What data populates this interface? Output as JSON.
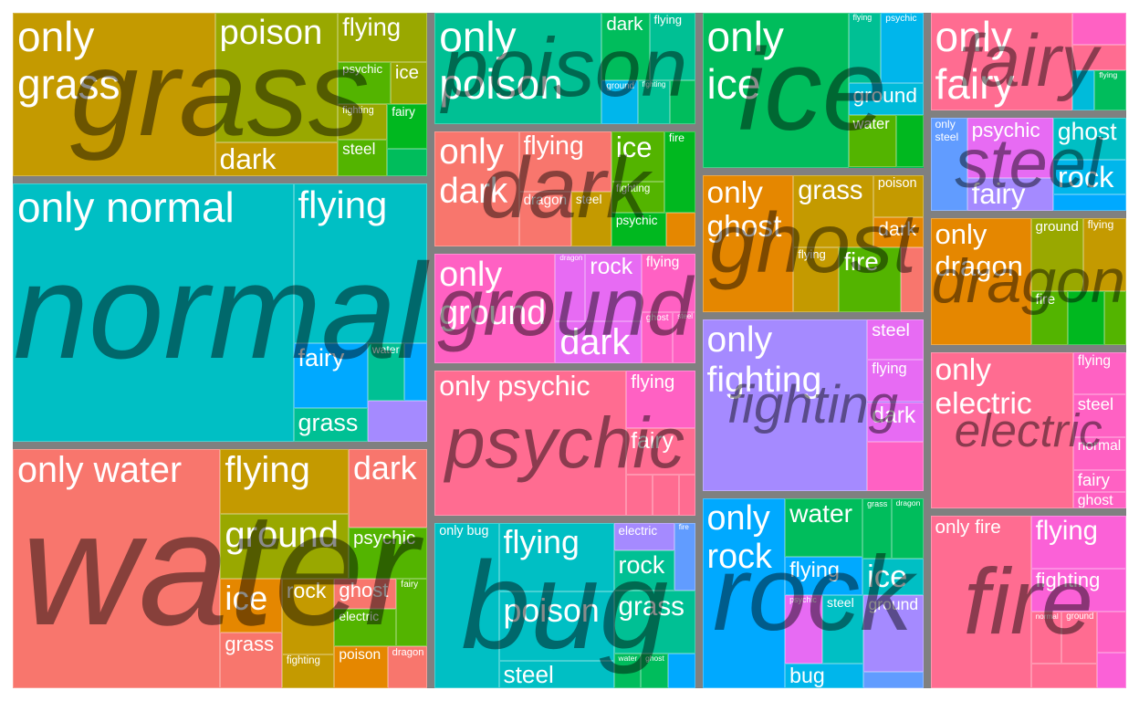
{
  "chart_data": {
    "type": "treemap",
    "groups": [
      {
        "name": "grass",
        "color": "#C49A00",
        "children": [
          {
            "label": "only\ngrass",
            "value": 29.8
          },
          {
            "label": "poison",
            "value": 14.4,
            "color": "#99A800"
          },
          {
            "label": "dark",
            "value": 3.7
          },
          {
            "label": "flying",
            "value": 4.0,
            "color": "#99A800"
          },
          {
            "label": "psychic",
            "value": 2.0,
            "color": "#53B400"
          },
          {
            "label": "ice",
            "value": 1.4,
            "color": "#99A800"
          },
          {
            "label": "fighting",
            "value": 1.6,
            "color": "#99A800"
          },
          {
            "label": "steel",
            "value": 1.6,
            "color": "#53B400"
          },
          {
            "label": "fairy",
            "value": 1.6,
            "color": "#00B81F"
          },
          {
            "label": "",
            "value": 1.0,
            "color": "#00BD5C"
          }
        ]
      },
      {
        "name": "poison",
        "color": "#00C094",
        "children": [
          {
            "label": "only\npoison",
            "value": 27.6
          },
          {
            "label": "dark",
            "value": 4.8,
            "color": "#00BD5C"
          },
          {
            "label": "flying",
            "value": 4.6,
            "color": "#00C094"
          },
          {
            "label": "ground",
            "value": 2.3,
            "color": "#00B6EB"
          },
          {
            "label": "fighting",
            "value": 2.1,
            "color": "#00C094"
          },
          {
            "label": "",
            "value": 1.6,
            "color": "#00BD5C"
          }
        ]
      },
      {
        "name": "ice",
        "color": "#00BD5C",
        "children": [
          {
            "label": "only\nice",
            "value": 23.6
          },
          {
            "label": "flying",
            "value": 2.4,
            "color": "#00C094"
          },
          {
            "label": "psychic",
            "value": 3.1,
            "color": "#00B6EB"
          },
          {
            "label": "ground",
            "value": 2.5,
            "color": "#00BBDA"
          },
          {
            "label": "water",
            "value": 2.6,
            "color": "#53B400"
          },
          {
            "label": "",
            "value": 1.5,
            "color": "#00B81F"
          }
        ]
      },
      {
        "name": "fairy",
        "color": "#FB61D7",
        "children": [
          {
            "label": "only\nfairy",
            "value": 17.3,
            "color": "#FF6C91"
          },
          {
            "label": "",
            "value": 2.1,
            "color": "#FF61C3"
          },
          {
            "label": "",
            "value": 1.7,
            "color": "#FF6C91"
          },
          {
            "label": "",
            "value": 1.1,
            "color": "#00BBDA"
          },
          {
            "label": "flying",
            "value": 1.6,
            "color": "#00BD5C"
          }
        ]
      },
      {
        "name": "dark",
        "color": "#E58700",
        "children": [
          {
            "label": "only\ndark",
            "value": 14.5,
            "color": "#F8766D"
          },
          {
            "label": "flying",
            "value": 8.3,
            "color": "#F8766D"
          },
          {
            "label": "dragon",
            "value": 4.3,
            "color": "#F8766D"
          },
          {
            "label": "steel",
            "value": 3.3,
            "color": "#C49A00"
          },
          {
            "label": "ice",
            "value": 4.0,
            "color": "#53B400"
          },
          {
            "label": "fighting",
            "value": 2.4,
            "color": "#53B400"
          },
          {
            "label": "fire",
            "value": 3.7,
            "color": "#00B81F"
          },
          {
            "label": "psychic",
            "value": 2.8,
            "color": "#00B81F"
          },
          {
            "label": "",
            "value": 1.5,
            "color": "#E58700"
          }
        ]
      },
      {
        "name": "ghost",
        "color": "#E58700",
        "children": [
          {
            "label": "only\nghost",
            "value": 13.1
          },
          {
            "label": "grass",
            "value": 6.1,
            "color": "#C49A00"
          },
          {
            "label": "poison",
            "value": 2.2,
            "color": "#C49A00"
          },
          {
            "label": "dark",
            "value": 1.6,
            "color": "#E58700"
          },
          {
            "label": "flying",
            "value": 3.1,
            "color": "#C49A00"
          },
          {
            "label": "fire",
            "value": 4.2,
            "color": "#53B400"
          },
          {
            "label": "",
            "value": 1.5,
            "color": "#F8766D"
          }
        ]
      },
      {
        "name": "steel",
        "color": "#619CFF",
        "children": [
          {
            "label": "only\nsteel",
            "value": 4.2
          },
          {
            "label": "psychic",
            "value": 6.4,
            "color": "#E76BF3"
          },
          {
            "label": "fairy",
            "value": 3.5,
            "color": "#A58AFF"
          },
          {
            "label": "ghost",
            "value": 3.8,
            "color": "#00BFC4"
          },
          {
            "label": "rock",
            "value": 3.1,
            "color": "#00B6EB"
          },
          {
            "label": "",
            "value": 1.5,
            "color": "#00A9FF"
          }
        ]
      },
      {
        "name": "ground",
        "color": "#FF61C3",
        "children": [
          {
            "label": "only\nground",
            "value": 19.6,
            "color": "#FF61C3"
          },
          {
            "label": "dragon",
            "value": 3.0,
            "color": "#E76BF3"
          },
          {
            "label": "rock",
            "value": 5.6,
            "color": "#E76BF3"
          },
          {
            "label": "dark",
            "value": 5.4,
            "color": "#E76BF3"
          },
          {
            "label": "flying",
            "value": 4.6,
            "color": "#FF61C3"
          },
          {
            "label": "ghost",
            "value": 2.4,
            "color": "#FF61C3"
          },
          {
            "label": "steel",
            "value": 1.7,
            "color": "#FF61C3"
          }
        ]
      },
      {
        "name": "fighting",
        "color": "#A58AFF",
        "children": [
          {
            "label": "only\nfighting",
            "value": 29.5
          },
          {
            "label": "steel",
            "value": 2.3,
            "color": "#E76BF3"
          },
          {
            "label": "flying",
            "value": 2.5,
            "color": "#E76BF3"
          },
          {
            "label": "dark",
            "value": 2.3,
            "color": "#E76BF3"
          },
          {
            "label": "",
            "value": 2.9,
            "color": "#FF61C3"
          }
        ]
      },
      {
        "name": "dragon",
        "color": "#F8766D",
        "children": [
          {
            "label": "only\ndragon",
            "value": 15.8,
            "color": "#E58700"
          },
          {
            "label": "ground",
            "value": 4.7,
            "color": "#99A800"
          },
          {
            "label": "flying",
            "value": 3.9,
            "color": "#C49A00"
          },
          {
            "label": "fire",
            "value": 2.5,
            "color": "#53B400"
          },
          {
            "label": "",
            "value": 2.4,
            "color": "#00B81F"
          },
          {
            "label": "",
            "value": 1.5,
            "color": "#53B400"
          }
        ]
      },
      {
        "name": "psychic",
        "color": "#FF6C91",
        "children": [
          {
            "label": "only psychic",
            "value": 41.3
          },
          {
            "label": "flying",
            "value": 5.9,
            "color": "#FF61C3"
          },
          {
            "label": "fairy",
            "value": 4.7,
            "color": "#FF6C91"
          },
          {
            "label": "",
            "value": 1.6,
            "color": "#FF6C91"
          },
          {
            "label": "",
            "value": 1.6,
            "color": "#FF6C91"
          },
          {
            "label": "",
            "value": 1.0,
            "color": "#FF6C91"
          }
        ]
      },
      {
        "name": "rock",
        "color": "#00A9FF",
        "children": [
          {
            "label": "only\nrock",
            "value": 16.4
          },
          {
            "label": "water",
            "value": 4.7,
            "color": "#00BD5C"
          },
          {
            "label": "flying",
            "value": 3.1
          },
          {
            "label": "grass",
            "value": 1.8,
            "color": "#00BD5C"
          },
          {
            "label": "dragon",
            "value": 2.0,
            "color": "#00BD5C"
          },
          {
            "label": "ice",
            "value": 2.3,
            "color": "#00BFC4"
          },
          {
            "label": "psychic",
            "value": 2.7,
            "color": "#E76BF3"
          },
          {
            "label": "steel",
            "value": 3.0,
            "color": "#00BFC4"
          },
          {
            "label": "bug",
            "value": 2.0,
            "color": "#00B6EB"
          },
          {
            "label": "ground",
            "value": 4.8,
            "color": "#A58AFF"
          },
          {
            "label": "",
            "value": 1.0,
            "color": "#619CFF"
          }
        ]
      },
      {
        "name": "electric",
        "color": "#FF6C91",
        "children": [
          {
            "label": "only\nelectric",
            "value": 27.6
          },
          {
            "label": "flying",
            "value": 2.8,
            "color": "#FF61C3"
          },
          {
            "label": "steel",
            "value": 2.8,
            "color": "#FF61C3"
          },
          {
            "label": "normal",
            "value": 2.2,
            "color": "#FF61C3"
          },
          {
            "label": "fairy",
            "value": 1.4,
            "color": "#FF61C3"
          },
          {
            "label": "ghost",
            "value": 1.1,
            "color": "#FF61C3"
          }
        ]
      },
      {
        "name": "normal",
        "color": "#00BFC4",
        "children": [
          {
            "label": "only normal",
            "value": 65.6
          },
          {
            "label": "flying",
            "value": 19.4,
            "color": "#00BFC4"
          },
          {
            "label": "fairy",
            "value": 4.3,
            "color": "#00A9FF"
          },
          {
            "label": "grass",
            "value": 2.3,
            "color": "#00C094"
          },
          {
            "label": "water",
            "value": 1.9,
            "color": "#00C094"
          },
          {
            "label": "",
            "value": 1.2,
            "color": "#00A9FF"
          },
          {
            "label": "",
            "value": 2.2,
            "color": "#A58AFF"
          }
        ]
      },
      {
        "name": "water",
        "color": "#F8766D",
        "children": [
          {
            "label": "only water",
            "value": 44.8
          },
          {
            "label": "flying",
            "value": 7.5,
            "color": "#C49A00"
          },
          {
            "label": "ground",
            "value": 7.5,
            "color": "#99A800"
          },
          {
            "label": "dark",
            "value": 5.6,
            "color": "#F8766D"
          },
          {
            "label": "psychic",
            "value": 3.6,
            "color": "#53B400"
          },
          {
            "label": "ice",
            "value": 3.0,
            "color": "#E58700"
          },
          {
            "label": "grass",
            "value": 3.1,
            "color": "#F8766D"
          },
          {
            "label": "rock",
            "value": 3.6,
            "color": "#C49A00"
          },
          {
            "label": "fighting",
            "value": 1.6,
            "color": "#C49A00"
          },
          {
            "label": "ghost",
            "value": 1.7,
            "color": "#F8766D"
          },
          {
            "label": "electric",
            "value": 2.1,
            "color": "#53B400"
          },
          {
            "label": "fairy",
            "value": 1.9,
            "color": "#53B400"
          },
          {
            "label": "poison",
            "value": 2.0,
            "color": "#E58700"
          },
          {
            "label": "dragon",
            "value": 1.5,
            "color": "#F8766D"
          }
        ]
      },
      {
        "name": "bug",
        "color": "#00BFC4",
        "children": [
          {
            "label": "only bug",
            "value": 15.8
          },
          {
            "label": "flying",
            "value": 11.7
          },
          {
            "label": "poison",
            "value": 11.9,
            "color": "#00BFC4"
          },
          {
            "label": "steel",
            "value": 4.7,
            "color": "#00BFC4"
          },
          {
            "label": "electric",
            "value": 2.5,
            "color": "#A58AFF"
          },
          {
            "label": "rock",
            "value": 3.6,
            "color": "#00C094"
          },
          {
            "label": "fire",
            "value": 2.1,
            "color": "#619CFF"
          },
          {
            "label": "grass",
            "value": 7.6,
            "color": "#00C094"
          },
          {
            "label": "water",
            "value": 1.4,
            "color": "#00BD5C"
          },
          {
            "label": "ghost",
            "value": 1.4,
            "color": "#00BD5C"
          },
          {
            "label": "",
            "value": 1.4,
            "color": "#00A9FF"
          }
        ]
      },
      {
        "name": "fire",
        "color": "#FF6C91",
        "children": [
          {
            "label": "only fire",
            "value": 21.5
          },
          {
            "label": "flying",
            "value": 6.3,
            "color": "#FB61D7"
          },
          {
            "label": "fighting",
            "value": 5.0,
            "color": "#FB61D7"
          },
          {
            "label": "normal",
            "value": 2.0,
            "color": "#FF6C91"
          },
          {
            "label": "ground",
            "value": 2.3,
            "color": "#FF6C91"
          },
          {
            "label": "",
            "value": 2.0,
            "color": "#FF6C91"
          },
          {
            "label": "",
            "value": 1.5,
            "color": "#FF61C3"
          },
          {
            "label": "",
            "value": 1.3,
            "color": "#FB61D7"
          }
        ]
      }
    ]
  }
}
